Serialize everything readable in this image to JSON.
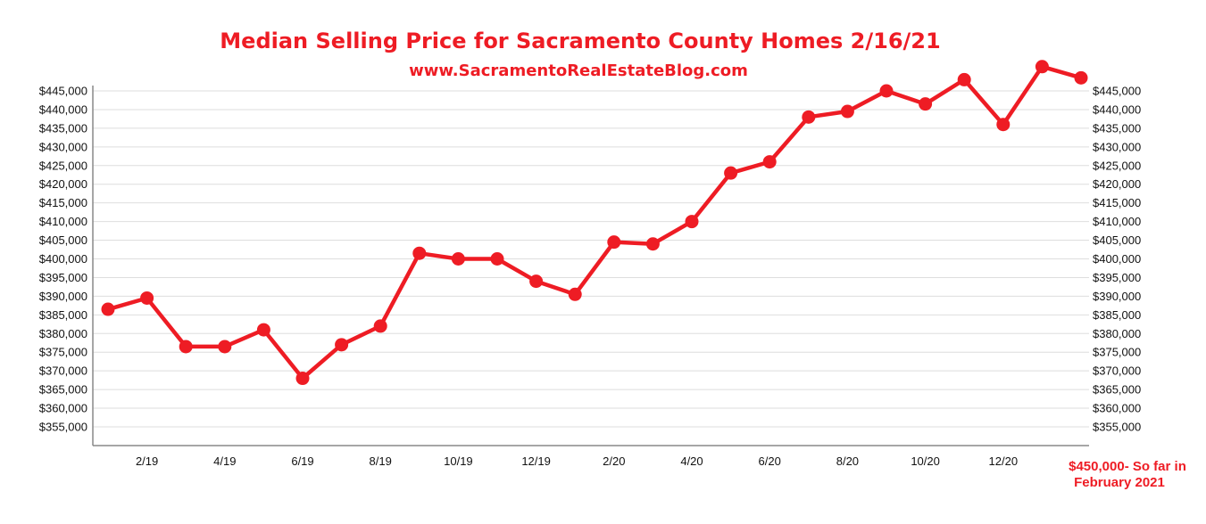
{
  "chart_data": {
    "type": "line",
    "title": "Median Selling Price for Sacramento County Homes 2/16/21",
    "subtitle": "www.SacramentoRealEstateBlog.com",
    "xlabel": "",
    "ylabel": "",
    "ylim": [
      350000,
      445000
    ],
    "y_ticks": [
      "$355,000",
      "$360,000",
      "$365,000",
      "$370,000",
      "$375,000",
      "$380,000",
      "$385,000",
      "$390,000",
      "$395,000",
      "$400,000",
      "$405,000",
      "$410,000",
      "$415,000",
      "$420,000",
      "$425,000",
      "$430,000",
      "$435,000",
      "$440,000",
      "$445,000"
    ],
    "x_tick_labels": [
      "2/19",
      "4/19",
      "6/19",
      "8/19",
      "10/19",
      "12/19",
      "2/20",
      "4/20",
      "6/20",
      "8/20",
      "10/20",
      "12/20"
    ],
    "grid": true,
    "color": "#ee1c24",
    "series": [
      {
        "values": [
          386500,
          389500,
          376500,
          376500,
          381000,
          368000,
          377000,
          382000,
          401500,
          400000,
          400000,
          394000,
          390500,
          404500,
          404000,
          410000,
          423000,
          426000,
          438000,
          439500,
          445000,
          441500,
          448000,
          436000,
          451500,
          448500
        ]
      }
    ],
    "annotation_line1": "$450,000- So far in",
    "annotation_line2": "February 2021"
  }
}
